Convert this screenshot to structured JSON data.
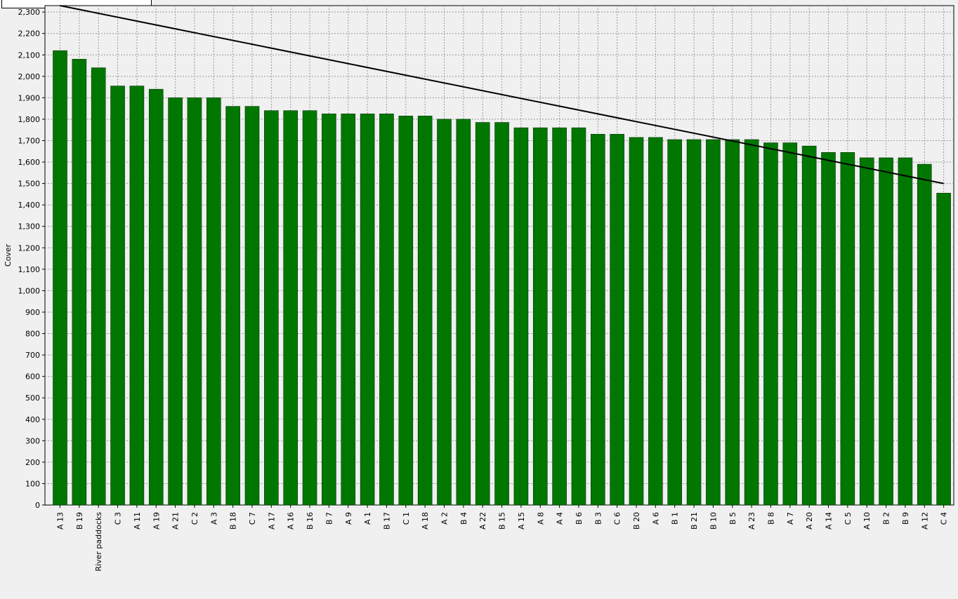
{
  "chart_data": {
    "type": "bar",
    "title": "",
    "xlabel": "",
    "ylabel": "Cover",
    "ylim": [
      0,
      2330
    ],
    "yticks": [
      0,
      100,
      200,
      300,
      400,
      500,
      600,
      700,
      800,
      900,
      1000,
      1100,
      1200,
      1300,
      1400,
      1500,
      1600,
      1700,
      1800,
      1900,
      2000,
      2100,
      2200,
      2300
    ],
    "ytick_labels": [
      "0",
      "100",
      "200",
      "300",
      "400",
      "500",
      "600",
      "700",
      "800",
      "900",
      "1,000",
      "1,100",
      "1,200",
      "1,300",
      "1,400",
      "1,500",
      "1,600",
      "1,700",
      "1,800",
      "1,900",
      "2,000",
      "2,100",
      "2,200",
      "2,300"
    ],
    "grid": true,
    "legend": "none",
    "bar_color": "#007700",
    "line_color": "#000000",
    "categories": [
      "A 13",
      "B 19",
      "River paddocks",
      "C 3",
      "A 11",
      "A 19",
      "A 21",
      "C 2",
      "A 3",
      "B 18",
      "C 7",
      "A 17",
      "A 16",
      "B 16",
      "B 7",
      "A 9",
      "A 1",
      "B 17",
      "C 1",
      "A 18",
      "A 2",
      "B 4",
      "A 22",
      "B 15",
      "A 15",
      "A 8",
      "A 4",
      "B 6",
      "B 3",
      "C 6",
      "B 20",
      "A 6",
      "B 1",
      "B 21",
      "B 10",
      "B 5",
      "A 23",
      "B 8",
      "A 7",
      "A 20",
      "A 14",
      "C 5",
      "A 10",
      "B 2",
      "B 9",
      "A 12",
      "C 4"
    ],
    "values": [
      2120,
      2080,
      2040,
      1955,
      1955,
      1940,
      1900,
      1900,
      1900,
      1860,
      1860,
      1840,
      1840,
      1840,
      1825,
      1825,
      1825,
      1825,
      1815,
      1815,
      1800,
      1800,
      1785,
      1785,
      1760,
      1760,
      1760,
      1760,
      1730,
      1730,
      1715,
      1715,
      1705,
      1705,
      1705,
      1705,
      1705,
      1690,
      1690,
      1675,
      1645,
      1645,
      1620,
      1620,
      1620,
      1590,
      1455
    ],
    "target_line": {
      "from_category": "A 13",
      "to_category": "C 4",
      "from_value": 2330,
      "to_value": 1500
    }
  }
}
